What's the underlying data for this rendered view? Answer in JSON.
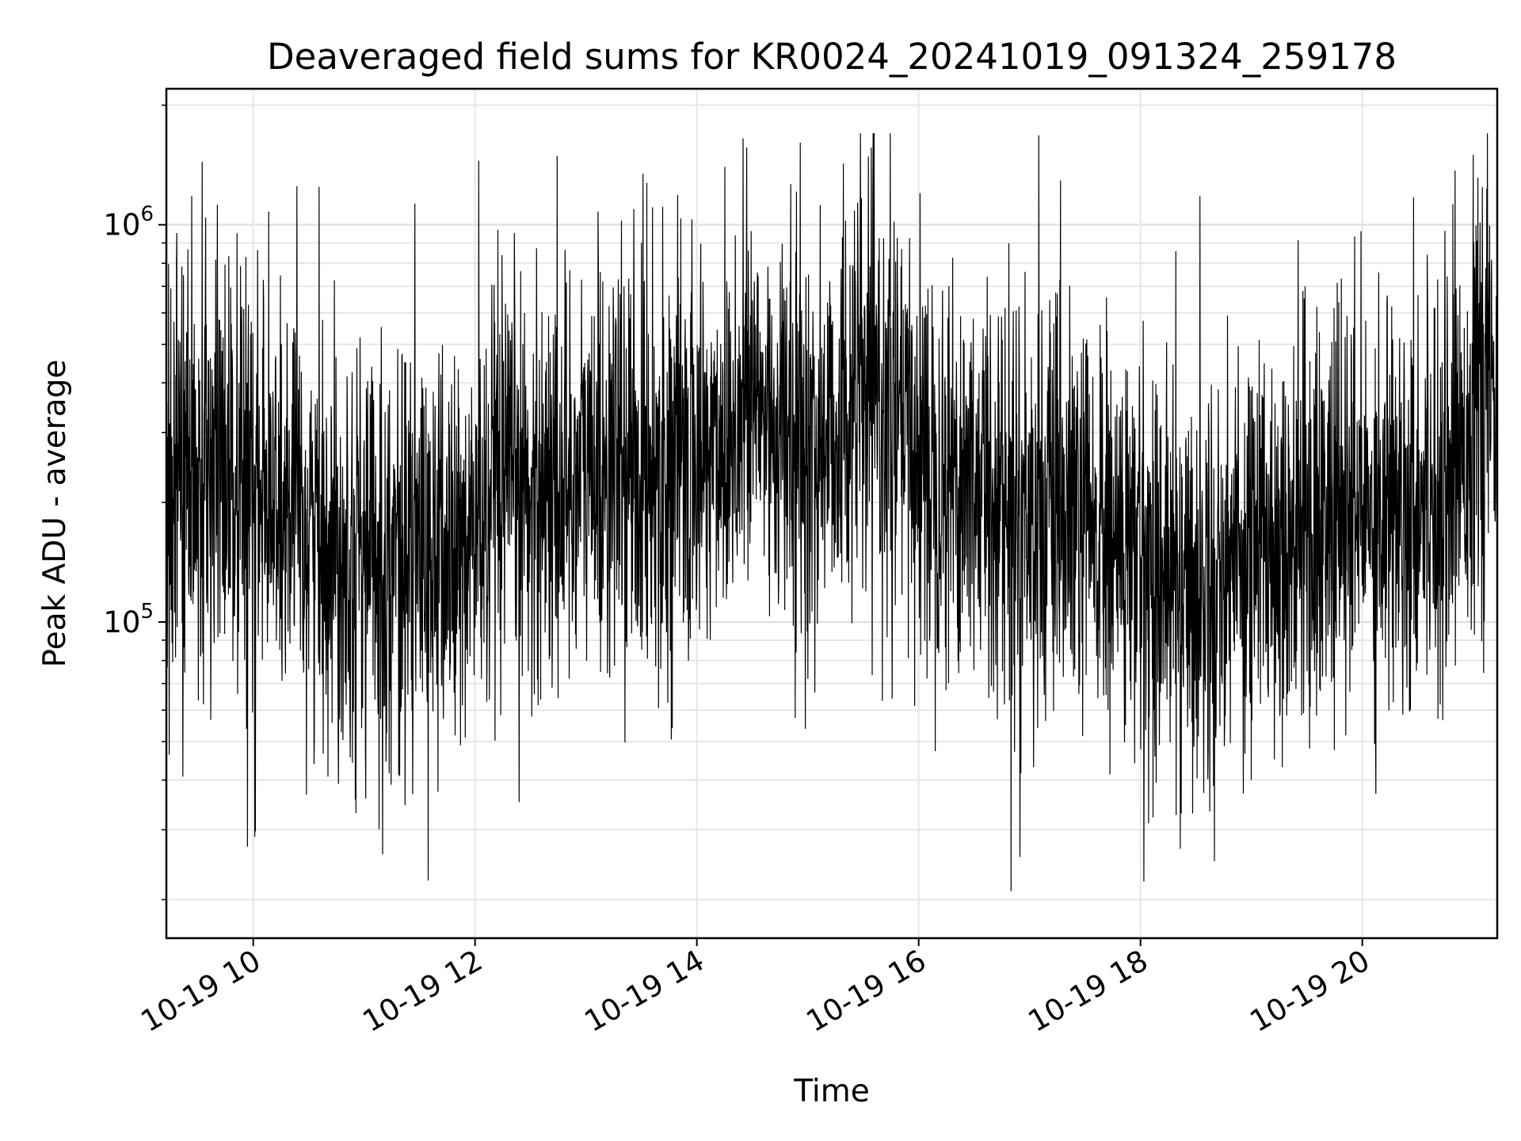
{
  "chart_data": {
    "type": "line",
    "title": "Deaveraged field sums for KR0024_20241019_091324_259178",
    "xlabel": "Time",
    "ylabel": "Peak ADU - average",
    "x_range": [
      "10-19 09:13",
      "10-19 21:13"
    ],
    "y_range": [
      16000,
      2200000
    ],
    "y_scale": "log",
    "grid": true,
    "x_ticks": [
      "10-19 10",
      "10-19 12",
      "10-19 14",
      "10-19 16",
      "10-19 18",
      "10-19 20"
    ],
    "y_ticks": [
      {
        "value": 100000,
        "base": "10",
        "exp": "5"
      },
      {
        "value": 1000000,
        "base": "10",
        "exp": "6"
      }
    ],
    "series": [
      {
        "color": "#000000",
        "hourly_median": [
          {
            "x": "10-19 09:13",
            "y": 260000
          },
          {
            "x": "10-19 10:00",
            "y": 200000
          },
          {
            "x": "10-19 11:00",
            "y": 150000
          },
          {
            "x": "10-19 11:50",
            "y": 145000
          },
          {
            "x": "10-19 12:20",
            "y": 210000
          },
          {
            "x": "10-19 13:00",
            "y": 240000
          },
          {
            "x": "10-19 14:00",
            "y": 250000
          },
          {
            "x": "10-19 14:30",
            "y": 360000
          },
          {
            "x": "10-19 15:00",
            "y": 260000
          },
          {
            "x": "10-19 15:30",
            "y": 380000
          },
          {
            "x": "10-19 16:00",
            "y": 270000
          },
          {
            "x": "10-19 17:00",
            "y": 190000
          },
          {
            "x": "10-19 17:30",
            "y": 170000
          },
          {
            "x": "10-19 18:30",
            "y": 120000
          },
          {
            "x": "10-19 19:00",
            "y": 160000
          },
          {
            "x": "10-19 20:00",
            "y": 190000
          },
          {
            "x": "10-19 20:40",
            "y": 220000
          },
          {
            "x": "10-19 21:13",
            "y": 420000
          }
        ],
        "notable_peaks": [
          {
            "x": "10-19 12:02",
            "y": 1450000
          },
          {
            "x": "10-19 14:25",
            "y": 1650000
          },
          {
            "x": "10-19 17:05",
            "y": 1680000
          },
          {
            "x": "10-19 21:00",
            "y": 1500000
          }
        ],
        "notable_troughs": [
          {
            "x": "10-19 11:10",
            "y": 26000
          },
          {
            "x": "10-19 16:50",
            "y": 21000
          },
          {
            "x": "10-19 18:40",
            "y": 25000
          }
        ]
      }
    ]
  }
}
